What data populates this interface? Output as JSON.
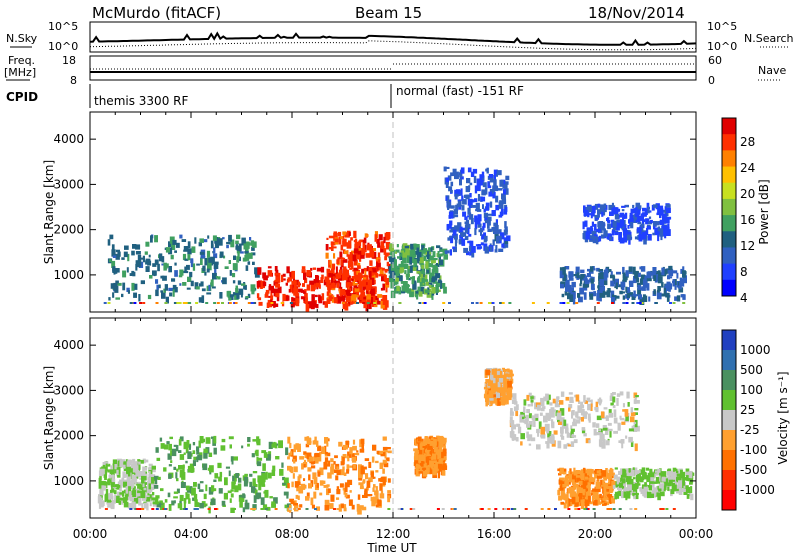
{
  "header": {
    "station": "McMurdo (fitACF)",
    "beam": "Beam 15",
    "date": "18/Nov/2014"
  },
  "strips": {
    "nsky_label": "N.Sky",
    "nsky_ticks": [
      "10^5",
      "10^0"
    ],
    "nsearch_label": "N.Search",
    "nsearch_ticks": [
      "10^5",
      "10^0"
    ],
    "freq_label": "Freq.",
    "freq_unit": "[MHz]",
    "freq_ticks": [
      "18",
      "8"
    ],
    "nave_label": "Nave",
    "nave_ticks": [
      "60",
      "0"
    ],
    "cpid_label": "CPID",
    "cpid_segments": [
      "themis 3300 RF",
      "normal (fast) -151 RF"
    ]
  },
  "axes": {
    "xlabel": "Time UT",
    "ylabel": "Slant Range [km]",
    "x_ticks": [
      "00:00",
      "04:00",
      "08:00",
      "12:00",
      "16:00",
      "20:00",
      "00:00"
    ],
    "y_ticks": [
      "1000",
      "2000",
      "3000",
      "4000"
    ]
  },
  "colorbars": {
    "power_label": "Power [dB]",
    "power_ticks": [
      "28",
      "24",
      "20",
      "16",
      "12",
      "8",
      "4"
    ],
    "power_colors": [
      "#e00000",
      "#ff3000",
      "#ff8000",
      "#ffc000",
      "#c8e020",
      "#80c040",
      "#40a060",
      "#206080",
      "#3060c0",
      "#2040ff",
      "#0000ff"
    ],
    "velocity_label": "Velocity [m s⁻¹]",
    "velocity_ticks": [
      "1000",
      "500",
      "100",
      "25",
      "-25",
      "-100",
      "-500",
      "-1000"
    ],
    "velocity_colors": [
      "#2040c0",
      "#3070b0",
      "#4a9060",
      "#60c030",
      "#c8c8c8",
      "#ffa030",
      "#ff7000",
      "#ff3000",
      "#ff0000"
    ]
  },
  "chart_data": {
    "type": "heatmap",
    "title": "McMurdo (fitACF) Beam 15 18/Nov/2014",
    "xlabel": "Time UT",
    "ylabel": "Slant Range [km]",
    "xlim": [
      "00:00",
      "24:00"
    ],
    "ylim": [
      180,
      4600
    ],
    "panels": [
      {
        "name": "Power",
        "unit": "dB",
        "clim": [
          0,
          30
        ],
        "blobs": [
          {
            "t0": 0.7,
            "t1": 6.6,
            "r0": 500,
            "r1": 1900,
            "value": 10
          },
          {
            "t0": 6.6,
            "t1": 11.3,
            "r0": 350,
            "r1": 1200,
            "value": 27
          },
          {
            "t0": 9.3,
            "t1": 11.8,
            "r0": 400,
            "r1": 2000,
            "value": 26
          },
          {
            "t0": 11.8,
            "t1": 14.0,
            "r0": 600,
            "r1": 1700,
            "value": 12
          },
          {
            "t0": 14.0,
            "t1": 16.5,
            "r0": 1500,
            "r1": 3400,
            "value": 6
          },
          {
            "t0": 18.6,
            "t1": 23.5,
            "r0": 500,
            "r1": 1200,
            "value": 8
          },
          {
            "t0": 19.5,
            "t1": 22.9,
            "r0": 1800,
            "r1": 2600,
            "value": 5
          }
        ]
      },
      {
        "name": "Velocity",
        "unit": "m s-1",
        "clim": [
          -1000,
          1000
        ],
        "blobs": [
          {
            "t0": 0.3,
            "t1": 2.5,
            "r0": 500,
            "r1": 1500,
            "value": 100
          },
          {
            "t0": 2.5,
            "t1": 7.8,
            "r0": 400,
            "r1": 2000,
            "value": 300
          },
          {
            "t0": 7.8,
            "t1": 11.8,
            "r0": 400,
            "r1": 2000,
            "value": -300
          },
          {
            "t0": 12.8,
            "t1": 14.0,
            "r0": 1200,
            "r1": 2000,
            "value": -300
          },
          {
            "t0": 15.6,
            "t1": 16.6,
            "r0": 2800,
            "r1": 3500,
            "value": -200
          },
          {
            "t0": 16.6,
            "t1": 21.6,
            "r0": 1800,
            "r1": 3000,
            "value": 0
          },
          {
            "t0": 18.5,
            "t1": 20.7,
            "r0": 500,
            "r1": 1300,
            "value": -300
          },
          {
            "t0": 20.7,
            "t1": 23.8,
            "r0": 700,
            "r1": 1300,
            "value": 150
          }
        ]
      }
    ],
    "summary_lines": [
      {
        "name": "N.Sky",
        "scale": "log"
      },
      {
        "name": "N.Search",
        "scale": "log"
      },
      {
        "name": "Freq.",
        "unit": "MHz",
        "range": [
          8,
          18
        ]
      },
      {
        "name": "Nave",
        "range": [
          0,
          60
        ]
      }
    ]
  }
}
